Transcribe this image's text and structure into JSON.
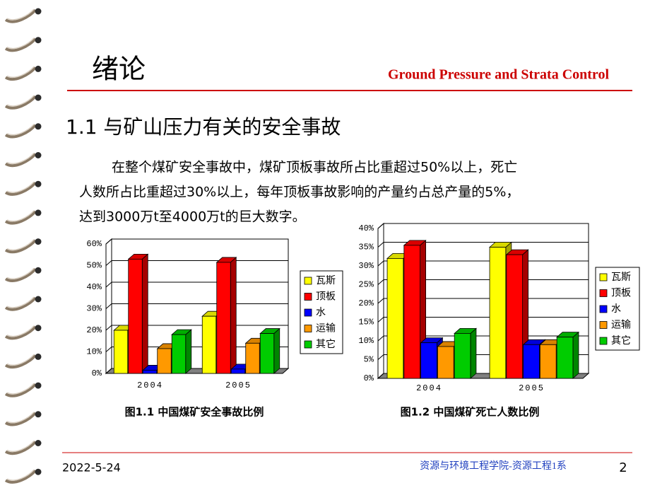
{
  "header": {
    "title": "绪论",
    "subtitle": "Ground Pressure and Strata Control"
  },
  "section_title": "1.1 与矿山压力有关的安全事故",
  "paragraph": [
    "在整个煤矿安全事故中，煤矿顶板事故所占比重超过50%以上，死亡",
    "人数所占比重超过30%以上，每年顶板事故影响的产量约占总产量的5%，",
    "达到3000万t至4000万t的巨大数字。"
  ],
  "chart_data": [
    {
      "type": "bar",
      "caption": "图1.1 中国煤矿安全事故比例",
      "categories": [
        "2004",
        "2005"
      ],
      "series": [
        {
          "name": "瓦斯",
          "color": "#ffff00",
          "values": [
            20,
            26.5
          ]
        },
        {
          "name": "顶板",
          "color": "#ff0000",
          "values": [
            53,
            51.5
          ]
        },
        {
          "name": "水",
          "color": "#0000ff",
          "values": [
            1.5,
            2
          ]
        },
        {
          "name": "运输",
          "color": "#ff9900",
          "values": [
            11.5,
            14
          ]
        },
        {
          "name": "其它",
          "color": "#00cc00",
          "values": [
            18,
            18.5
          ]
        }
      ],
      "ylim": [
        0,
        60
      ],
      "yticks": [
        {
          "value": 0,
          "label": "0%"
        },
        {
          "value": 10,
          "label": "10%"
        },
        {
          "value": 20,
          "label": "20%"
        },
        {
          "value": 30,
          "label": "30%"
        },
        {
          "value": 40,
          "label": "40%"
        },
        {
          "value": 50,
          "label": "50%"
        },
        {
          "value": 60,
          "label": "60%"
        }
      ],
      "grid": true,
      "legend": "right"
    },
    {
      "type": "bar",
      "caption": "图1.2 中国煤矿死亡人数比例",
      "categories": [
        "2004",
        "2005"
      ],
      "series": [
        {
          "name": "瓦斯",
          "color": "#ffff00",
          "values": [
            32,
            35
          ]
        },
        {
          "name": "顶板",
          "color": "#ff0000",
          "values": [
            35.5,
            33
          ]
        },
        {
          "name": "水",
          "color": "#0000ff",
          "values": [
            9.5,
            9
          ]
        },
        {
          "name": "运输",
          "color": "#ff9900",
          "values": [
            8.5,
            9
          ]
        },
        {
          "name": "其它",
          "color": "#00cc00",
          "values": [
            12,
            11
          ]
        }
      ],
      "ylim": [
        0,
        40
      ],
      "yticks": [
        {
          "value": 0,
          "label": "0%"
        },
        {
          "value": 5,
          "label": "5%"
        },
        {
          "value": 10,
          "label": "10%"
        },
        {
          "value": 15,
          "label": "15%"
        },
        {
          "value": 20,
          "label": "20%"
        },
        {
          "value": 25,
          "label": "25%"
        },
        {
          "value": 30,
          "label": "30%"
        },
        {
          "value": 35,
          "label": "35%"
        },
        {
          "value": 40,
          "label": "40%"
        }
      ],
      "grid": true,
      "legend": "right"
    }
  ],
  "footer": {
    "date": "2022-5-24",
    "org": "资源与环境工程学院-资源工程1系",
    "page": "2"
  }
}
